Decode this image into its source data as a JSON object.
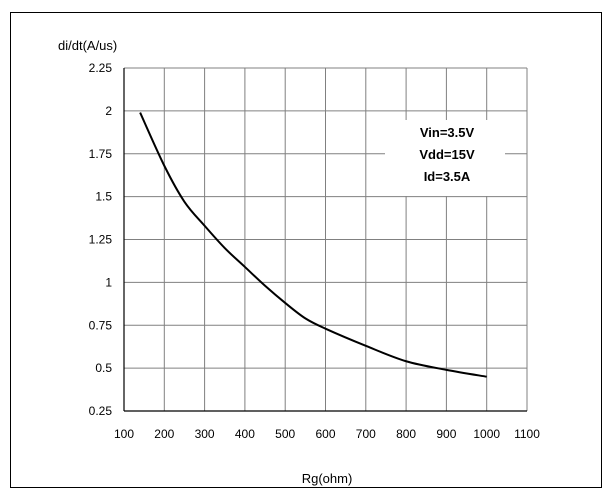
{
  "chart_data": {
    "type": "line",
    "xlabel": "Rg(ohm)",
    "ylabel": "di/dt(A/us)",
    "xlim": [
      100,
      1100
    ],
    "ylim": [
      0.25,
      2.25
    ],
    "x_ticks": [
      "100",
      "200",
      "300",
      "400",
      "500",
      "600",
      "700",
      "800",
      "900",
      "1000",
      "1100"
    ],
    "y_ticks": [
      "0.25",
      "0.5",
      "0.75",
      "1",
      "1.25",
      "1.5",
      "1.75",
      "2",
      "2.25"
    ],
    "grid": true,
    "annotations": [
      "Vin=3.5V",
      "Vdd=15V",
      "Id=3.5A"
    ],
    "series": [
      {
        "x": [
          140,
          200,
          250,
          300,
          350,
          400,
          450,
          500,
          550,
          600,
          700,
          800,
          900,
          1000
        ],
        "y": [
          1.99,
          1.68,
          1.47,
          1.33,
          1.2,
          1.09,
          0.98,
          0.88,
          0.79,
          0.73,
          0.63,
          0.54,
          0.49,
          0.45
        ]
      }
    ],
    "colors": {
      "line": "#000000",
      "grid": "#808080",
      "axis": "#000000"
    }
  }
}
